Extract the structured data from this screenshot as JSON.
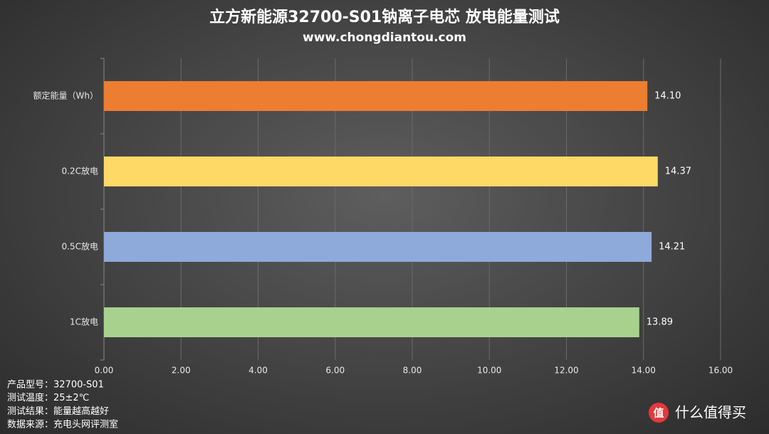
{
  "chart_data": {
    "type": "bar",
    "orientation": "horizontal",
    "title": "立方新能源32700-S01钠离子电芯 放电能量测试",
    "subtitle": "www.chongdiantou.com",
    "categories": [
      "额定能量（Wh）",
      "0.2C放电",
      "0.5C放电",
      "1C放电"
    ],
    "values": [
      14.1,
      14.37,
      14.21,
      13.89
    ],
    "value_labels": [
      "14.10",
      "14.37",
      "14.21",
      "13.89"
    ],
    "colors": [
      "#ed7d31",
      "#ffd966",
      "#8eaadb",
      "#a9d18e"
    ],
    "xlim": [
      0,
      16
    ],
    "xticks": [
      {
        "value": 0,
        "label": "0.00"
      },
      {
        "value": 2,
        "label": "2.00"
      },
      {
        "value": 4,
        "label": "4.00"
      },
      {
        "value": 6,
        "label": "6.00"
      },
      {
        "value": 8,
        "label": "8.00"
      },
      {
        "value": 10,
        "label": "10.00"
      },
      {
        "value": 12,
        "label": "12.00"
      },
      {
        "value": 14,
        "label": "14.00"
      },
      {
        "value": 16,
        "label": "16.00"
      }
    ],
    "grid": true
  },
  "notes": [
    "产品型号：32700-S01",
    "测试温度：25±2℃",
    "测试结果：能量越高越好",
    "数据来源：充电头网评测室"
  ],
  "watermark": {
    "icon": "值",
    "text": "什么值得买"
  }
}
